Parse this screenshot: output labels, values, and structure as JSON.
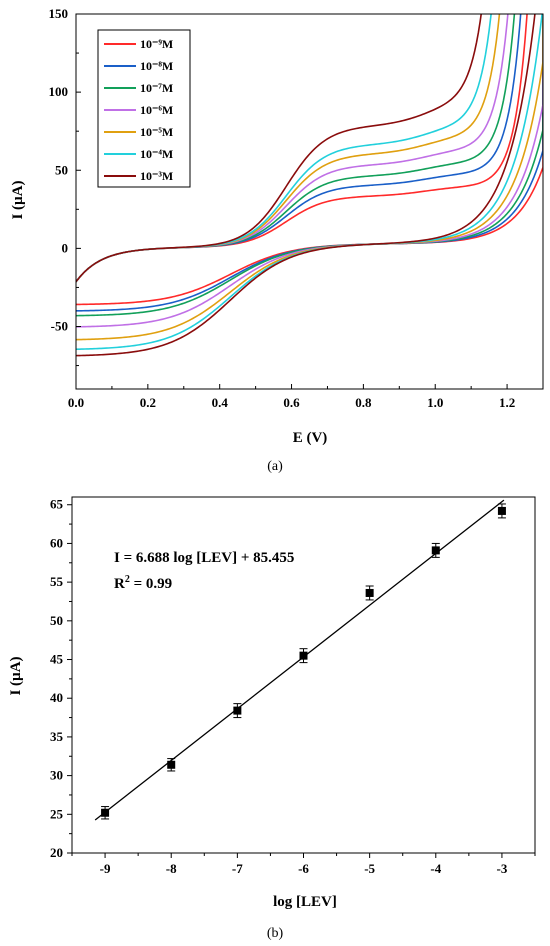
{
  "chart_data": [
    {
      "type": "line",
      "panel_caption": "(a)",
      "xlabel": "E (V)",
      "ylabel": "I (µA)",
      "xlim": [
        0.0,
        1.3
      ],
      "ylim": [
        -90,
        150
      ],
      "xticks": [
        "0.0",
        "0.2",
        "0.4",
        "0.6",
        "0.8",
        "1.0",
        "1.2"
      ],
      "yticks": [
        "-50",
        "0",
        "50",
        "100",
        "150"
      ],
      "legend_position": "top-left",
      "series": [
        {
          "name": "10⁻⁹M",
          "color": "#ff2a2a",
          "plateau": 33,
          "cathodic": -38,
          "onset": 1.205
        },
        {
          "name": "10⁻⁸M",
          "color": "#1a5fc8",
          "plateau": 40,
          "cathodic": -42,
          "onset": 1.19
        },
        {
          "name": "10⁻⁷M",
          "color": "#12a05a",
          "plateau": 46,
          "cathodic": -45,
          "onset": 1.175
        },
        {
          "name": "10⁻⁶M",
          "color": "#c070e6",
          "plateau": 53,
          "cathodic": -52,
          "onset": 1.16
        },
        {
          "name": "10⁻⁵M",
          "color": "#e0a010",
          "plateau": 60,
          "cathodic": -60,
          "onset": 1.14
        },
        {
          "name": "10⁻⁴M",
          "color": "#22d0dc",
          "plateau": 66,
          "cathodic": -66,
          "onset": 1.12
        },
        {
          "name": "10⁻³M",
          "color": "#8a0c0c",
          "plateau": 78,
          "cathodic": -70,
          "onset": 1.1
        }
      ]
    },
    {
      "type": "scatter",
      "panel_caption": "(b)",
      "xlabel": "log [LEV]",
      "ylabel": "I (µA)",
      "xlim": [
        -9.5,
        -2.5
      ],
      "ylim": [
        20,
        66
      ],
      "xticks": [
        "-9",
        "-8",
        "-7",
        "-6",
        "-5",
        "-4",
        "-3"
      ],
      "yticks": [
        "20",
        "25",
        "30",
        "35",
        "40",
        "45",
        "50",
        "55",
        "60",
        "65"
      ],
      "x": [
        -9,
        -8,
        -7,
        -6,
        -5,
        -4,
        -3
      ],
      "y": [
        25.2,
        31.4,
        38.4,
        45.5,
        53.6,
        59.1,
        64.2
      ],
      "error": [
        0.8,
        0.8,
        0.9,
        0.9,
        0.9,
        0.9,
        0.9
      ],
      "fit": {
        "slope": 6.688,
        "intercept": 85.455
      },
      "equation": "I = 6.688 log [LEV] + 85.455",
      "r2_label": "R",
      "r2_sup": "2",
      "r2_value": " = 0.99",
      "marker_color": "#000000"
    }
  ]
}
